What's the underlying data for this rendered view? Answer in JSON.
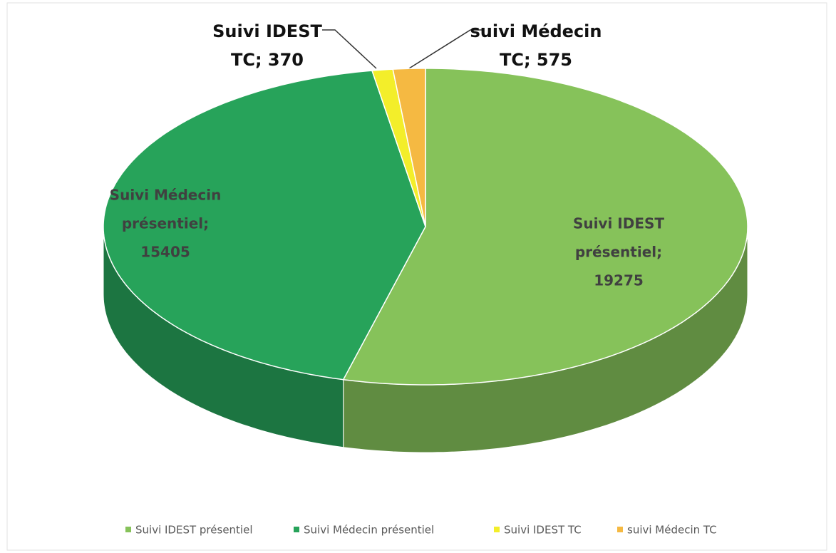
{
  "chart_data": {
    "type": "pie3d",
    "categories": [
      "Suivi IDEST présentiel",
      "Suivi Médecin présentiel",
      "Suivi IDEST TC",
      "suivi Médecin TC"
    ],
    "values": [
      19275,
      15405,
      370,
      575
    ],
    "data_labels": [
      [
        "Suivi IDEST",
        "présentiel;",
        "19275"
      ],
      [
        "Suivi Médecin",
        "présentiel;",
        "15405"
      ],
      [
        "Suivi IDEST",
        "TC; 370"
      ],
      [
        "suivi Médecin",
        "TC; 575"
      ]
    ],
    "colors": [
      "#86c25a",
      "#27a35a",
      "#f3ee2a",
      "#f5b942"
    ],
    "legend": "bottom"
  }
}
